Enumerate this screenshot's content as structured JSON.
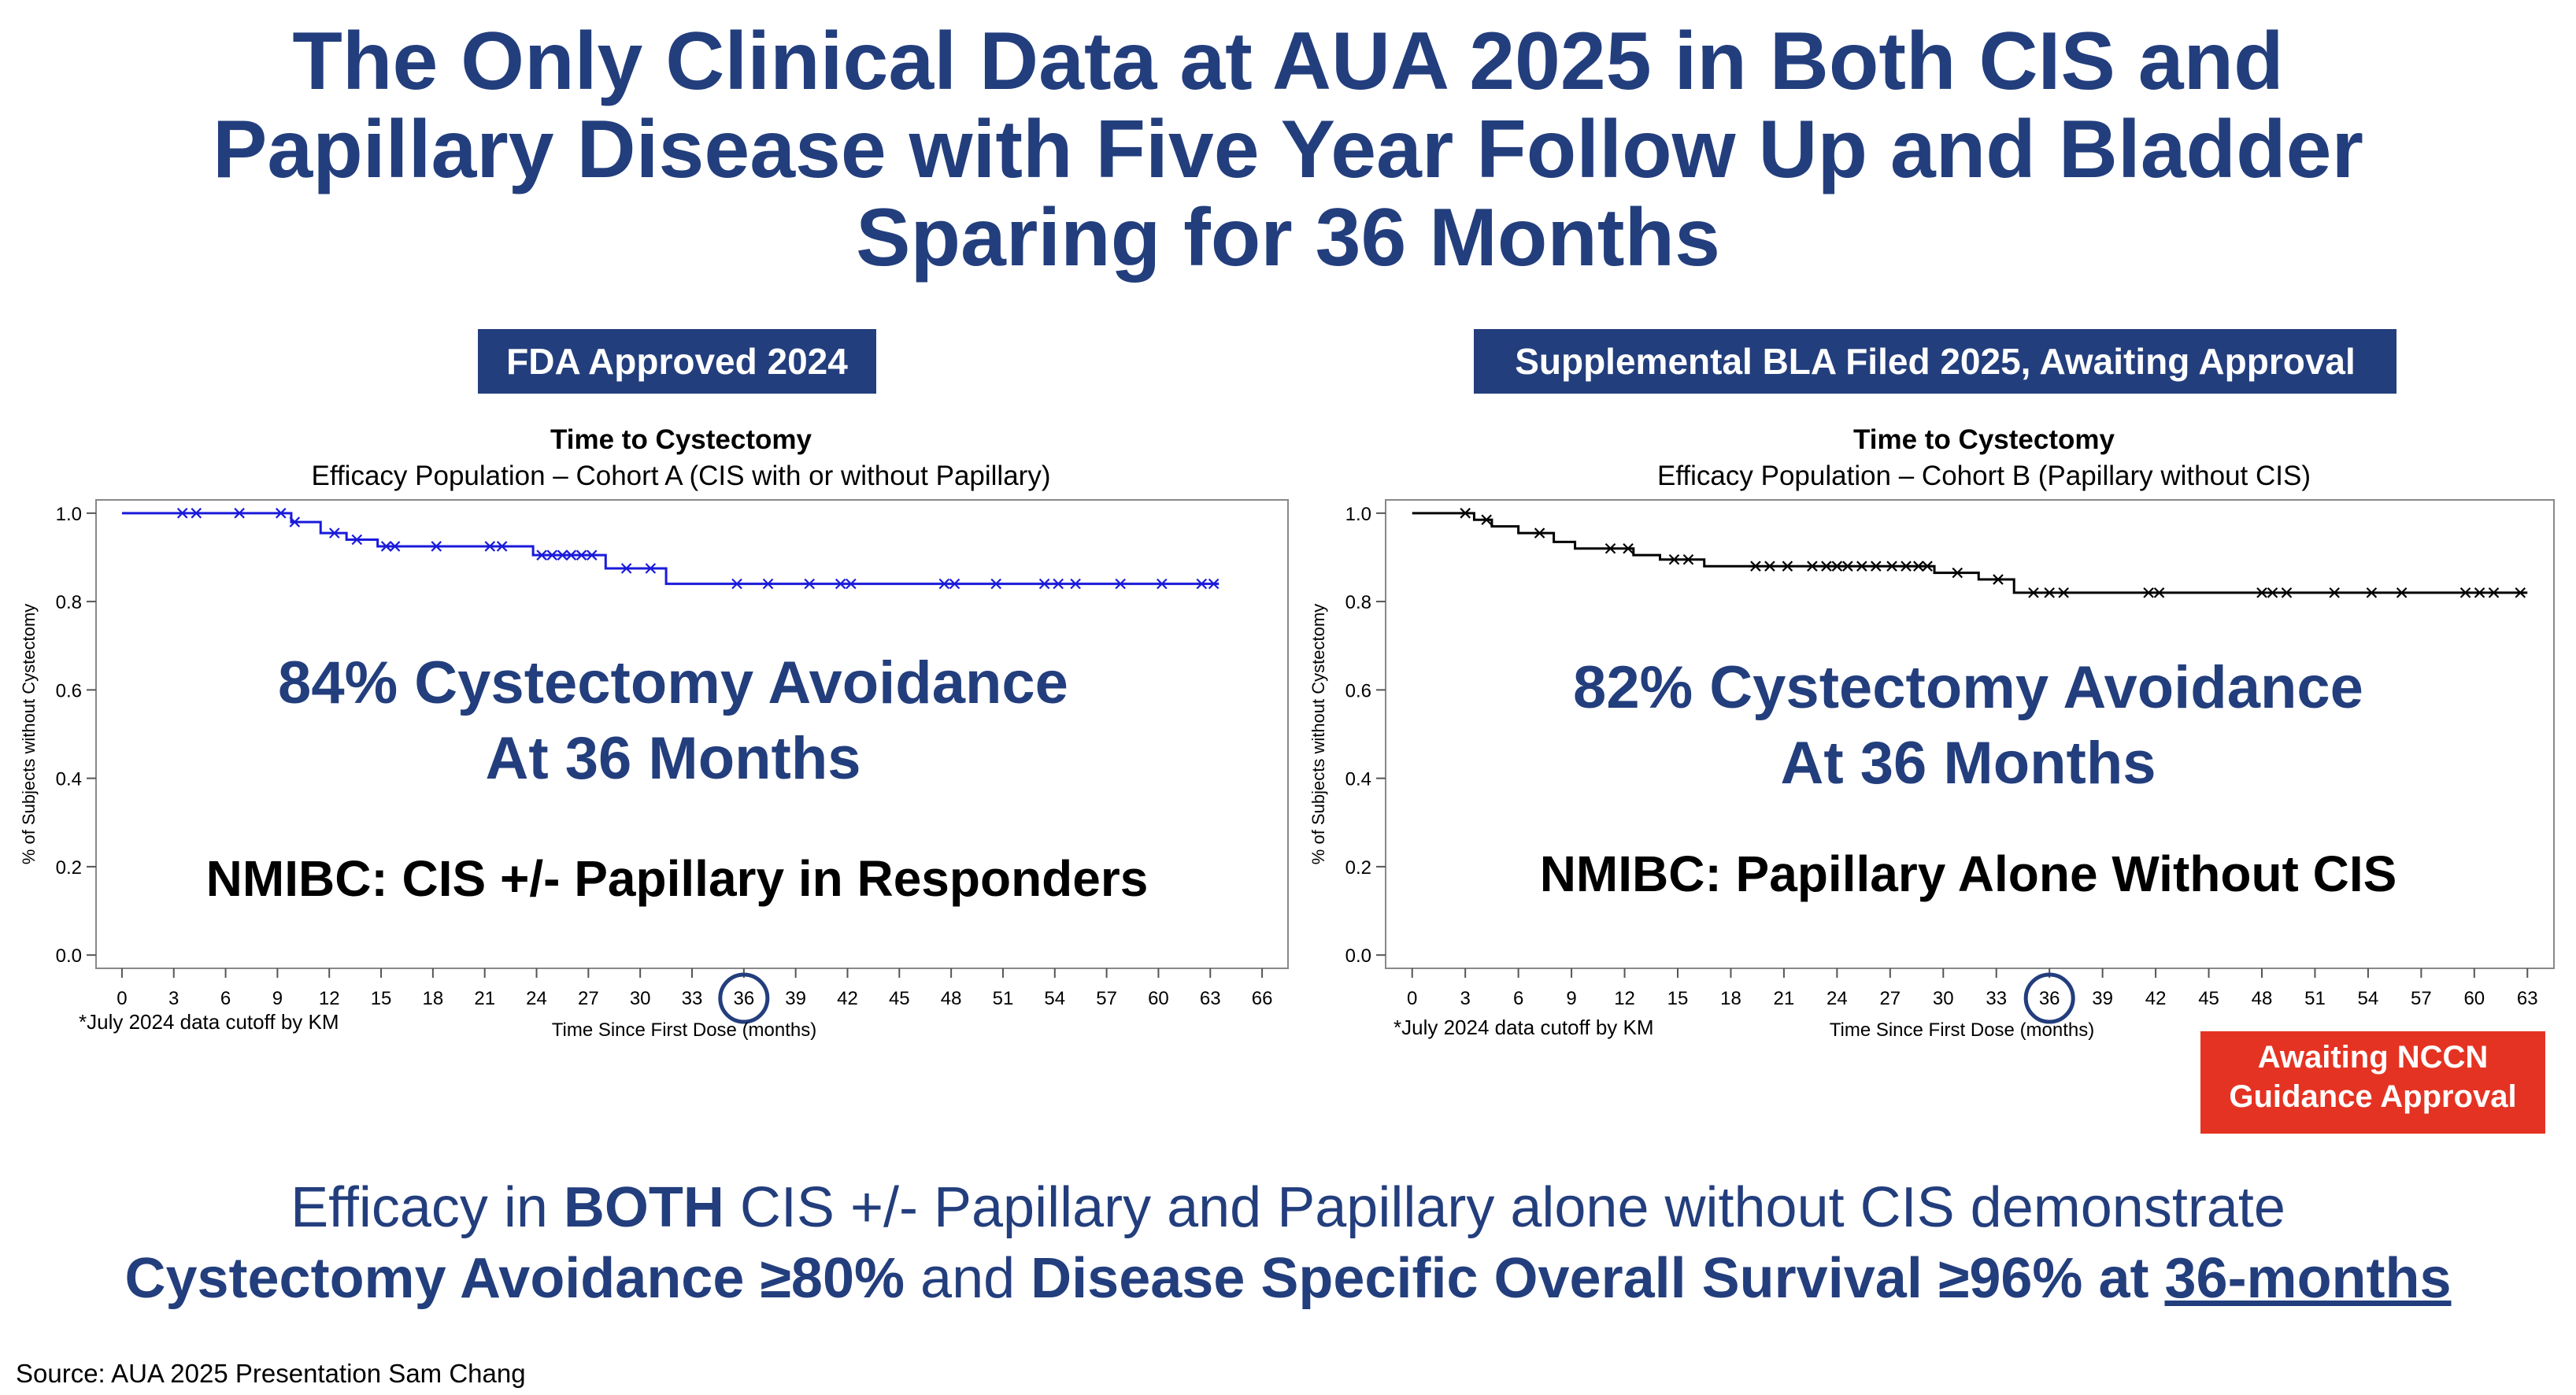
{
  "header": {
    "title_line1": "The Only Clinical Data at AUA 2025 in Both CIS and",
    "title_line2": "Papillary Disease with Five Year Follow Up and Bladder",
    "title_line3": "Sparing for 36 Months"
  },
  "left": {
    "badge": "FDA Approved 2024",
    "overlay_line1": "84% Cystectomy Avoidance",
    "overlay_line2": "At 36 Months",
    "overlay_sub": "NMIBC: CIS +/- Papillary in Responders",
    "footnote": "*July 2024 data cutoff by KM"
  },
  "right": {
    "badge": "Supplemental BLA Filed 2025, Awaiting Approval",
    "overlay_line1": "82% Cystectomy Avoidance",
    "overlay_line2": "At 36 Months",
    "overlay_sub": "NMIBC: Papillary Alone Without CIS",
    "footnote": "*July 2024 data cutoff by KM",
    "nccn_line1": "Awaiting NCCN",
    "nccn_line2": "Guidance Approval"
  },
  "bottom": {
    "l1_a": "Efficacy in ",
    "l1_b": "BOTH",
    "l1_c": " CIS +/- Papillary and Papillary alone without CIS demonstrate",
    "l2_a": "Cystectomy Avoidance ≥80%",
    "l2_b": " and ",
    "l2_c": "Disease Specific Overall Survival ≥96% at ",
    "l2_d": "36-months"
  },
  "source": "Source: AUA 2025 Presentation Sam Chang",
  "chart_data": [
    {
      "type": "line",
      "step": true,
      "title": "Time to Cystectomy",
      "subtitle": "Efficacy Population – Cohort A (CIS with or without Papillary)",
      "xlabel": "Time Since First Dose (months)",
      "ylabel": "% of Subjects without Cystectomy",
      "xlim": [
        -1.5,
        67.5
      ],
      "ylim": [
        -0.03,
        1.03
      ],
      "xticks": [
        0,
        3,
        6,
        9,
        12,
        15,
        18,
        21,
        24,
        27,
        30,
        33,
        36,
        39,
        42,
        45,
        48,
        51,
        54,
        57,
        60,
        63,
        66
      ],
      "yticks": [
        "0.0",
        "0.2",
        "0.4",
        "0.6",
        "0.8",
        "1.0"
      ],
      "highlight_x": 36,
      "color": "#1a1adb",
      "steps": [
        [
          0,
          1.0
        ],
        [
          9.8,
          0.98
        ],
        [
          11.5,
          0.955
        ],
        [
          13,
          0.94
        ],
        [
          14.8,
          0.925
        ],
        [
          23.8,
          0.905
        ],
        [
          28,
          0.875
        ],
        [
          31.5,
          0.84
        ],
        [
          63.5,
          0.84
        ]
      ],
      "censored": [
        [
          3.5,
          1.0
        ],
        [
          4.3,
          1.0
        ],
        [
          6.8,
          1.0
        ],
        [
          9.2,
          1.0
        ],
        [
          10,
          0.98
        ],
        [
          12.3,
          0.955
        ],
        [
          13.6,
          0.94
        ],
        [
          15.3,
          0.925
        ],
        [
          15.8,
          0.925
        ],
        [
          18.2,
          0.925
        ],
        [
          21.3,
          0.925
        ],
        [
          22,
          0.925
        ],
        [
          24.3,
          0.905
        ],
        [
          24.9,
          0.905
        ],
        [
          25.5,
          0.905
        ],
        [
          26,
          0.905
        ],
        [
          26.6,
          0.905
        ],
        [
          27.2,
          0.905
        ],
        [
          29.2,
          0.875
        ],
        [
          30.6,
          0.875
        ],
        [
          35.6,
          0.84
        ],
        [
          37.4,
          0.84
        ],
        [
          39.8,
          0.84
        ],
        [
          41.6,
          0.84
        ],
        [
          42.2,
          0.84
        ],
        [
          47.6,
          0.84
        ],
        [
          48.2,
          0.84
        ],
        [
          50.6,
          0.84
        ],
        [
          53.4,
          0.84
        ],
        [
          54.2,
          0.84
        ],
        [
          55.2,
          0.84
        ],
        [
          57.8,
          0.84
        ],
        [
          60.2,
          0.84
        ],
        [
          62.5,
          0.84
        ],
        [
          63.2,
          0.84
        ]
      ]
    },
    {
      "type": "line",
      "step": true,
      "title": "Time to Cystectomy",
      "subtitle": "Efficacy Population – Cohort B (Papillary without CIS)",
      "xlabel": "Time Since First Dose (months)",
      "ylabel": "% of Subjects without Cystectomy",
      "xlim": [
        -1.5,
        64.5
      ],
      "ylim": [
        -0.03,
        1.03
      ],
      "xticks": [
        0,
        3,
        6,
        9,
        12,
        15,
        18,
        21,
        24,
        27,
        30,
        33,
        36,
        39,
        42,
        45,
        48,
        51,
        54,
        57,
        60,
        63
      ],
      "yticks": [
        "0.0",
        "0.2",
        "0.4",
        "0.6",
        "0.8",
        "1.0"
      ],
      "highlight_x": 36,
      "color": "#000000",
      "steps": [
        [
          0,
          1.0
        ],
        [
          3.5,
          0.985
        ],
        [
          4.5,
          0.97
        ],
        [
          6,
          0.955
        ],
        [
          8,
          0.935
        ],
        [
          9.2,
          0.92
        ],
        [
          12.5,
          0.905
        ],
        [
          14,
          0.895
        ],
        [
          16.5,
          0.88
        ],
        [
          29.5,
          0.865
        ],
        [
          32,
          0.85
        ],
        [
          34,
          0.82
        ],
        [
          63,
          0.82
        ]
      ],
      "censored": [
        [
          3,
          1.0
        ],
        [
          4.2,
          0.985
        ],
        [
          7.2,
          0.955
        ],
        [
          11.2,
          0.92
        ],
        [
          12.2,
          0.92
        ],
        [
          14.8,
          0.895
        ],
        [
          15.6,
          0.895
        ],
        [
          19.4,
          0.88
        ],
        [
          20.2,
          0.88
        ],
        [
          21.2,
          0.88
        ],
        [
          22.6,
          0.88
        ],
        [
          23.4,
          0.88
        ],
        [
          24,
          0.88
        ],
        [
          24.6,
          0.88
        ],
        [
          25.4,
          0.88
        ],
        [
          26.2,
          0.88
        ],
        [
          27.1,
          0.88
        ],
        [
          27.9,
          0.88
        ],
        [
          28.6,
          0.88
        ],
        [
          29.1,
          0.88
        ],
        [
          30.8,
          0.865
        ],
        [
          33.1,
          0.85
        ],
        [
          35.1,
          0.82
        ],
        [
          36,
          0.82
        ],
        [
          36.8,
          0.82
        ],
        [
          41.6,
          0.82
        ],
        [
          42.2,
          0.82
        ],
        [
          48,
          0.82
        ],
        [
          48.6,
          0.82
        ],
        [
          49.4,
          0.82
        ],
        [
          52.1,
          0.82
        ],
        [
          54.2,
          0.82
        ],
        [
          55.9,
          0.82
        ],
        [
          59.5,
          0.82
        ],
        [
          60.3,
          0.82
        ],
        [
          61.1,
          0.82
        ],
        [
          62.6,
          0.82
        ]
      ]
    }
  ]
}
